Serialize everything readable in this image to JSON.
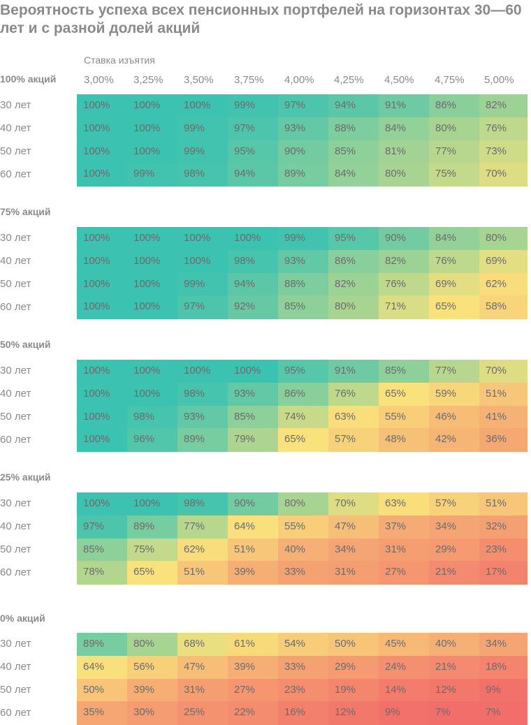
{
  "chart_data": {
    "type": "heatmap",
    "title": "Вероятность успеха всех пенсионных портфелей на горизонтах 30—60 лет и с разной долей акций",
    "column_axis_label": "Ставка изъятия",
    "columns": [
      "3,00%",
      "3,25%",
      "3,50%",
      "3,75%",
      "4,00%",
      "4,25%",
      "4,50%",
      "4,75%",
      "5,00%"
    ],
    "rows": [
      "30 лет",
      "40 лет",
      "50 лет",
      "60 лет"
    ],
    "value_unit": "%",
    "color_scale": {
      "low": "#f26a6a",
      "mid": "#f9e27c",
      "high": "#3cc2b0"
    },
    "sections": [
      {
        "label": "100% акций",
        "values": [
          [
            100,
            100,
            100,
            99,
            97,
            94,
            91,
            86,
            82
          ],
          [
            100,
            100,
            99,
            97,
            93,
            88,
            84,
            80,
            76
          ],
          [
            100,
            100,
            99,
            95,
            90,
            85,
            81,
            77,
            73
          ],
          [
            100,
            99,
            98,
            94,
            89,
            84,
            80,
            75,
            70
          ]
        ]
      },
      {
        "label": "75% акций",
        "values": [
          [
            100,
            100,
            100,
            100,
            99,
            95,
            90,
            84,
            80
          ],
          [
            100,
            100,
            100,
            98,
            93,
            86,
            82,
            76,
            69
          ],
          [
            100,
            100,
            99,
            94,
            88,
            82,
            76,
            69,
            62
          ],
          [
            100,
            100,
            97,
            92,
            85,
            80,
            71,
            65,
            58
          ]
        ]
      },
      {
        "label": "50% акций",
        "values": [
          [
            100,
            100,
            100,
            100,
            95,
            91,
            85,
            77,
            70
          ],
          [
            100,
            100,
            98,
            93,
            86,
            76,
            65,
            59,
            51
          ],
          [
            100,
            98,
            93,
            85,
            74,
            63,
            55,
            46,
            41
          ],
          [
            100,
            96,
            89,
            79,
            65,
            57,
            48,
            42,
            36
          ]
        ]
      },
      {
        "label": "25% акций",
        "values": [
          [
            100,
            100,
            98,
            90,
            80,
            70,
            63,
            57,
            51
          ],
          [
            97,
            89,
            77,
            64,
            55,
            47,
            37,
            34,
            32
          ],
          [
            85,
            75,
            62,
            51,
            40,
            34,
            31,
            29,
            23
          ],
          [
            78,
            65,
            51,
            39,
            33,
            31,
            27,
            21,
            17
          ]
        ]
      },
      {
        "label": "0% акций",
        "values": [
          [
            89,
            80,
            68,
            61,
            54,
            50,
            45,
            40,
            34
          ],
          [
            64,
            56,
            47,
            39,
            33,
            29,
            24,
            21,
            18
          ],
          [
            50,
            39,
            31,
            27,
            23,
            19,
            14,
            12,
            9
          ],
          [
            35,
            30,
            25,
            22,
            16,
            12,
            9,
            7,
            7
          ]
        ]
      }
    ]
  }
}
